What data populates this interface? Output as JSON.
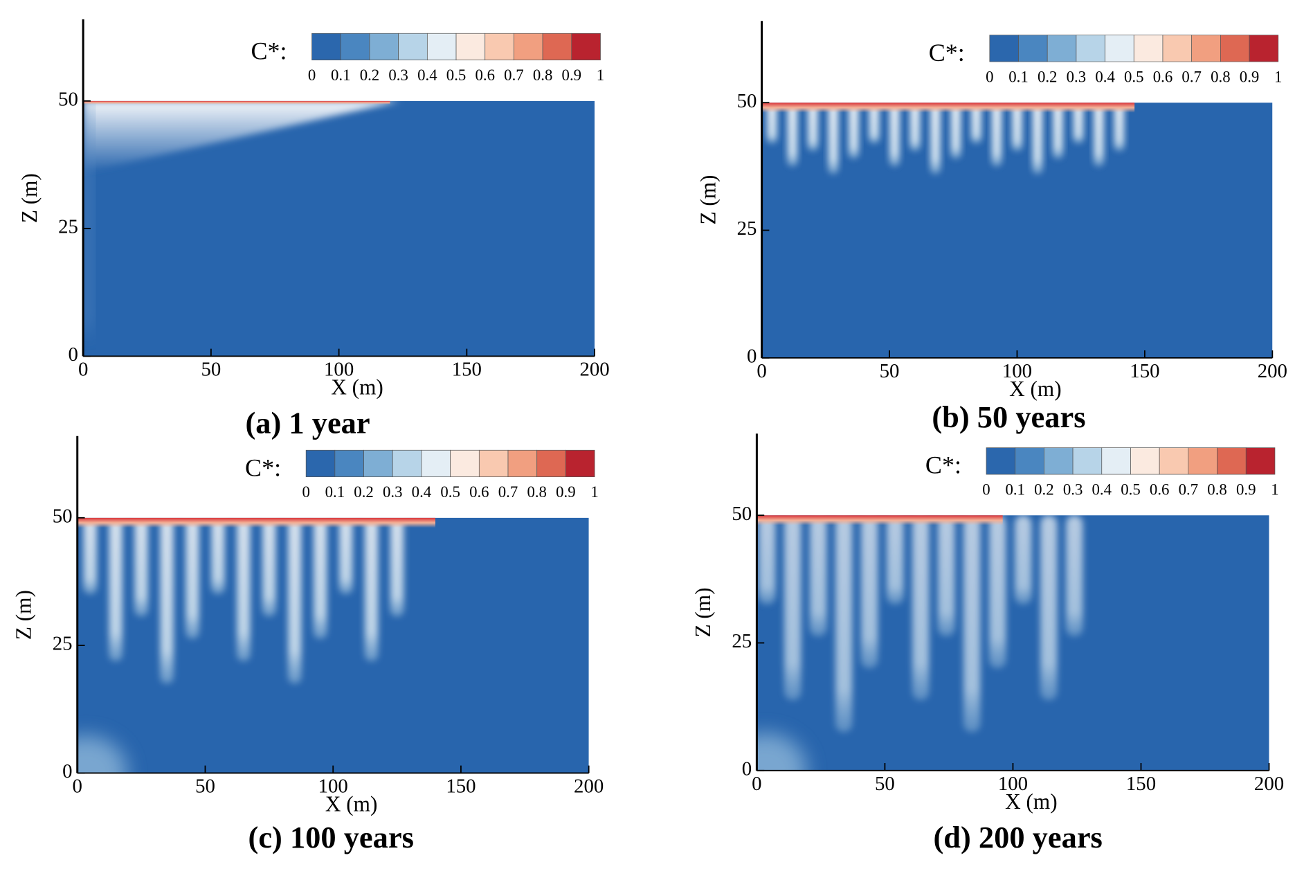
{
  "chart_data": [
    {
      "type": "contour",
      "title": "(a) 1 year",
      "xlabel": "X (m)",
      "ylabel": "Z (m)",
      "xlim": [
        0,
        200
      ],
      "ylim": [
        0,
        66
      ],
      "xticks": [
        0,
        50,
        100,
        150,
        200
      ],
      "yticks": [
        0,
        25,
        50
      ],
      "colorbar_label": "C*:",
      "colorbar_ticks": [
        0,
        0.1,
        0.2,
        0.3,
        0.4,
        0.5,
        0.6,
        0.7,
        0.8,
        0.9,
        1
      ],
      "colorbar_colors": [
        "#2b67ad",
        "#4a86c0",
        "#7eaed4",
        "#b7d4e8",
        "#e4eef5",
        "#fbeae0",
        "#f9c9b0",
        "#f19f80",
        "#de6853",
        "#b9232f"
      ]
    },
    {
      "type": "contour",
      "title": "(b) 50 years",
      "xlabel": "X (m)",
      "ylabel": "Z (m)",
      "xlim": [
        0,
        200
      ],
      "ylim": [
        0,
        66
      ],
      "xticks": [
        0,
        50,
        100,
        150,
        200
      ],
      "yticks": [
        0,
        25,
        50
      ],
      "colorbar_label": "C*:",
      "colorbar_ticks": [
        0,
        0.1,
        0.2,
        0.3,
        0.4,
        0.5,
        0.6,
        0.7,
        0.8,
        0.9,
        1
      ],
      "colorbar_colors": [
        "#2b67ad",
        "#4a86c0",
        "#7eaed4",
        "#b7d4e8",
        "#e4eef5",
        "#fbeae0",
        "#f9c9b0",
        "#f19f80",
        "#de6853",
        "#b9232f"
      ]
    },
    {
      "type": "contour",
      "title": "(c) 100 years",
      "xlabel": "X (m)",
      "ylabel": "Z (m)",
      "xlim": [
        0,
        200
      ],
      "ylim": [
        0,
        66
      ],
      "xticks": [
        0,
        50,
        100,
        150,
        200
      ],
      "yticks": [
        0,
        25,
        50
      ],
      "colorbar_label": "C*:",
      "colorbar_ticks": [
        0,
        0.1,
        0.2,
        0.3,
        0.4,
        0.5,
        0.6,
        0.7,
        0.8,
        0.9,
        1
      ],
      "colorbar_colors": [
        "#2b67ad",
        "#4a86c0",
        "#7eaed4",
        "#b7d4e8",
        "#e4eef5",
        "#fbeae0",
        "#f9c9b0",
        "#f19f80",
        "#de6853",
        "#b9232f"
      ]
    },
    {
      "type": "contour",
      "title": "(d) 200 years",
      "xlabel": "X (m)",
      "ylabel": "Z (m)",
      "xlim": [
        0,
        200
      ],
      "ylim": [
        0,
        66
      ],
      "xticks": [
        0,
        50,
        100,
        150,
        200
      ],
      "yticks": [
        0,
        25,
        50
      ],
      "colorbar_label": "C*:",
      "colorbar_ticks": [
        0,
        0.1,
        0.2,
        0.3,
        0.4,
        0.5,
        0.6,
        0.7,
        0.8,
        0.9,
        1
      ],
      "colorbar_colors": [
        "#2b67ad",
        "#4a86c0",
        "#7eaed4",
        "#b7d4e8",
        "#e4eef5",
        "#fbeae0",
        "#f9c9b0",
        "#f19f80",
        "#de6853",
        "#b9232f"
      ]
    }
  ]
}
